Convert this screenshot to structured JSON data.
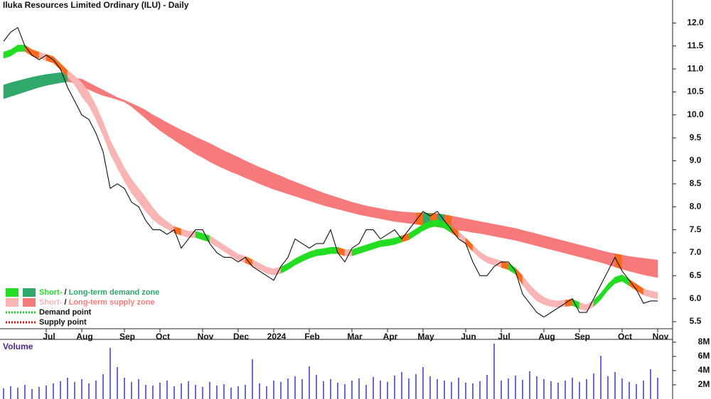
{
  "chart_data": {
    "type": "band-price",
    "title": "Iluka Resources Limited Ordinary (ILU) - Daily",
    "categories": [
      null,
      null,
      null,
      null,
      null,
      null,
      "Jul",
      null,
      null,
      null,
      null,
      "Aug",
      null,
      null,
      null,
      null,
      null,
      "Sep",
      null,
      null,
      null,
      null,
      "Oct",
      null,
      null,
      null,
      null,
      null,
      "Nov",
      null,
      null,
      null,
      null,
      "Dec",
      null,
      null,
      null,
      null,
      "2024",
      null,
      null,
      null,
      null,
      "Feb",
      null,
      null,
      null,
      null,
      null,
      "Mar",
      null,
      null,
      null,
      null,
      "Apr",
      null,
      null,
      null,
      null,
      "May",
      null,
      null,
      null,
      null,
      null,
      "Jun",
      null,
      null,
      null,
      null,
      "Jul",
      null,
      null,
      null,
      null,
      null,
      "Aug",
      null,
      null,
      null,
      null,
      "Sep",
      null,
      null,
      null,
      null,
      null,
      "Oct",
      null,
      null,
      null,
      null,
      "Nov"
    ],
    "close": [
      11.6,
      11.8,
      11.9,
      11.5,
      11.3,
      11.2,
      11.3,
      11.2,
      11.0,
      10.6,
      10.3,
      10.0,
      9.9,
      9.6,
      9.2,
      8.4,
      8.5,
      8.4,
      8.1,
      8.0,
      7.7,
      7.5,
      7.5,
      7.4,
      7.5,
      7.1,
      7.3,
      7.5,
      7.5,
      7.2,
      7.0,
      6.9,
      6.9,
      6.8,
      6.9,
      6.7,
      6.6,
      6.5,
      6.4,
      6.7,
      6.9,
      7.3,
      7.2,
      7.1,
      7.2,
      7.2,
      7.5,
      7.0,
      6.8,
      7.1,
      7.2,
      7.5,
      7.5,
      7.3,
      7.4,
      7.5,
      7.3,
      7.5,
      7.7,
      7.9,
      7.8,
      7.9,
      7.7,
      7.5,
      7.3,
      7.2,
      6.8,
      6.5,
      6.5,
      6.7,
      6.8,
      6.8,
      6.6,
      6.1,
      5.9,
      5.7,
      5.6,
      5.7,
      5.8,
      5.9,
      6.0,
      5.7,
      5.7,
      6.0,
      6.3,
      6.6,
      6.9,
      6.6,
      6.4,
      6.2,
      5.9,
      5.95,
      5.95
    ],
    "short_upper": [
      11.37,
      11.42,
      11.52,
      11.52,
      11.42,
      11.37,
      11.32,
      11.27,
      11.12,
      10.97,
      10.85,
      10.7,
      10.5,
      10.2,
      9.85,
      9.45,
      9.15,
      8.85,
      8.6,
      8.4,
      8.2,
      7.98,
      7.8,
      7.68,
      7.57,
      7.52,
      7.47,
      7.47,
      7.42,
      7.37,
      7.27,
      7.17,
      7.07,
      6.97,
      6.92,
      6.85,
      6.77,
      6.69,
      6.65,
      6.69,
      6.77,
      6.87,
      6.95,
      7.02,
      7.07,
      7.09,
      7.12,
      7.12,
      7.07,
      7.07,
      7.12,
      7.17,
      7.22,
      7.27,
      7.29,
      7.32,
      7.37,
      7.42,
      7.52,
      7.62,
      7.69,
      7.72,
      7.67,
      7.57,
      7.47,
      7.32,
      7.17,
      7.02,
      6.92,
      6.87,
      6.82,
      6.77,
      6.67,
      6.5,
      6.3,
      6.15,
      6.03,
      5.97,
      5.95,
      5.97,
      5.99,
      5.92,
      5.87,
      5.97,
      6.12,
      6.32,
      6.47,
      6.52,
      6.42,
      6.32,
      6.22,
      6.17,
      6.14
    ],
    "short_lower": [
      11.23,
      11.28,
      11.38,
      11.38,
      11.28,
      11.23,
      11.18,
      11.13,
      10.98,
      10.83,
      10.65,
      10.4,
      10.2,
      9.9,
      9.55,
      9.15,
      8.85,
      8.55,
      8.3,
      8.1,
      7.9,
      7.72,
      7.6,
      7.52,
      7.43,
      7.38,
      7.33,
      7.33,
      7.28,
      7.23,
      7.13,
      7.03,
      6.93,
      6.83,
      6.78,
      6.71,
      6.63,
      6.55,
      6.51,
      6.55,
      6.63,
      6.73,
      6.81,
      6.88,
      6.93,
      6.95,
      6.98,
      6.98,
      6.93,
      6.93,
      6.98,
      7.03,
      7.08,
      7.13,
      7.15,
      7.18,
      7.23,
      7.28,
      7.38,
      7.48,
      7.55,
      7.58,
      7.53,
      7.43,
      7.33,
      7.18,
      7.03,
      6.88,
      6.78,
      6.73,
      6.68,
      6.63,
      6.53,
      6.3,
      6.1,
      5.95,
      5.87,
      5.83,
      5.81,
      5.83,
      5.85,
      5.78,
      5.73,
      5.83,
      5.98,
      6.18,
      6.33,
      6.38,
      6.28,
      6.18,
      6.08,
      6.03,
      6.0
    ],
    "long_upper": [
      10.65,
      10.7,
      10.74,
      10.78,
      10.82,
      10.85,
      10.88,
      10.9,
      10.92,
      10.9,
      10.8,
      10.78,
      10.7,
      10.62,
      10.54,
      10.46,
      10.38,
      10.32,
      10.25,
      10.18,
      10.1,
      10.0,
      9.92,
      9.83,
      9.75,
      9.67,
      9.6,
      9.52,
      9.45,
      9.38,
      9.3,
      9.22,
      9.15,
      9.08,
      9.0,
      8.93,
      8.86,
      8.8,
      8.73,
      8.67,
      8.6,
      8.54,
      8.48,
      8.42,
      8.36,
      8.3,
      8.25,
      8.2,
      8.15,
      8.1,
      8.06,
      8.02,
      7.99,
      7.96,
      7.93,
      7.91,
      7.89,
      7.88,
      7.87,
      7.87,
      7.86,
      7.85,
      7.83,
      7.8,
      7.77,
      7.74,
      7.71,
      7.68,
      7.65,
      7.62,
      7.59,
      7.56,
      7.53,
      7.49,
      7.45,
      7.41,
      7.37,
      7.33,
      7.29,
      7.25,
      7.21,
      7.17,
      7.13,
      7.09,
      7.05,
      7.01,
      6.98,
      6.95,
      6.92,
      6.9,
      6.88,
      6.86,
      6.84
    ],
    "long_lower": [
      10.35,
      10.4,
      10.45,
      10.5,
      10.55,
      10.6,
      10.64,
      10.67,
      10.7,
      10.72,
      10.7,
      10.62,
      10.55,
      10.48,
      10.42,
      10.38,
      10.33,
      10.28,
      10.18,
      10.05,
      9.92,
      9.78,
      9.66,
      9.55,
      9.45,
      9.35,
      9.25,
      9.15,
      9.07,
      8.98,
      8.9,
      8.83,
      8.76,
      8.7,
      8.63,
      8.57,
      8.5,
      8.44,
      8.38,
      8.33,
      8.28,
      8.23,
      8.18,
      8.13,
      8.08,
      8.03,
      7.99,
      7.95,
      7.91,
      7.87,
      7.83,
      7.8,
      7.77,
      7.74,
      7.71,
      7.68,
      7.66,
      7.64,
      7.62,
      7.6,
      7.58,
      7.56,
      7.54,
      7.52,
      7.49,
      7.47,
      7.44,
      7.42,
      7.39,
      7.36,
      7.33,
      7.3,
      7.27,
      7.23,
      7.19,
      7.15,
      7.11,
      7.07,
      7.03,
      6.99,
      6.95,
      6.91,
      6.87,
      6.83,
      6.79,
      6.74,
      6.69,
      6.64,
      6.6,
      6.56,
      6.52,
      6.49,
      6.46
    ],
    "ylim": [
      5.3,
      12.5
    ],
    "yticks": [
      5.5,
      {
        "value": 6,
        "label": "6.0"
      },
      6.5,
      {
        "value": 7,
        "label": "7.0"
      },
      7.5,
      {
        "value": 8,
        "label": "8.0"
      },
      8.5,
      {
        "value": 9,
        "label": "9.0"
      },
      9.5,
      {
        "value": 10,
        "label": "10.0"
      },
      10.5,
      {
        "value": 11,
        "label": "11.0"
      },
      11.5,
      {
        "value": 12,
        "label": "12.0"
      }
    ],
    "colors": {
      "short_demand": "#22dd22",
      "short_supply": "#f9b4b4",
      "long_demand": "#2fa86a",
      "long_supply": "#f77a7a",
      "transition": "#ff6a1a",
      "price": "#111111",
      "volume": "#6a6ad8",
      "demand_point": "#22cc22",
      "supply_point": "#dd1111"
    },
    "legend": {
      "items": [
        {
          "short": "Short-",
          "separator": " / ",
          "long": "Long-term demand zone"
        },
        {
          "short": "Short-",
          "separator": " / ",
          "long": "Long-term supply zone"
        },
        {
          "label": "Demand point"
        },
        {
          "label": "Supply point"
        }
      ]
    },
    "volume": {
      "label": "Volume",
      "values": [
        1500000,
        1800000,
        1600000,
        2000000,
        1400000,
        1700000,
        1900000,
        2200000,
        2500000,
        3000000,
        2400000,
        2800000,
        2200000,
        2600000,
        3500000,
        7200000,
        4500000,
        3000000,
        2400000,
        2800000,
        2000000,
        1900000,
        2300000,
        2600000,
        1800000,
        2200000,
        2500000,
        2000000,
        1700000,
        2400000,
        1900000,
        2100000,
        1600000,
        1800000,
        2000000,
        5600000,
        2200000,
        1800000,
        2600000,
        2400000,
        2900000,
        3200000,
        2800000,
        4600000,
        3400000,
        2500000,
        2800000,
        2300000,
        2100000,
        2600000,
        2900000,
        2000000,
        3100000,
        2600000,
        2400000,
        3300000,
        3800000,
        2900000,
        3500000,
        4500000,
        3200000,
        2800000,
        2600000,
        2400000,
        3000000,
        2300000,
        2200000,
        2500000,
        3400000,
        7800000,
        2600000,
        2900000,
        3300000,
        2700000,
        3900000,
        3200000,
        2800000,
        2500000,
        2300000,
        2600000,
        3000000,
        2400000,
        2800000,
        3600000,
        6100000,
        3200000,
        3800000,
        2900000,
        2400000,
        2100000,
        2600000,
        4200000,
        3000000
      ],
      "ylim": [
        0,
        8400000
      ],
      "yticks": [
        {
          "value": 2000000,
          "label": "2M"
        },
        {
          "value": 4000000,
          "label": "4M"
        },
        {
          "value": 6000000,
          "label": "6M"
        },
        {
          "value": 8000000,
          "label": "8M"
        }
      ]
    }
  }
}
